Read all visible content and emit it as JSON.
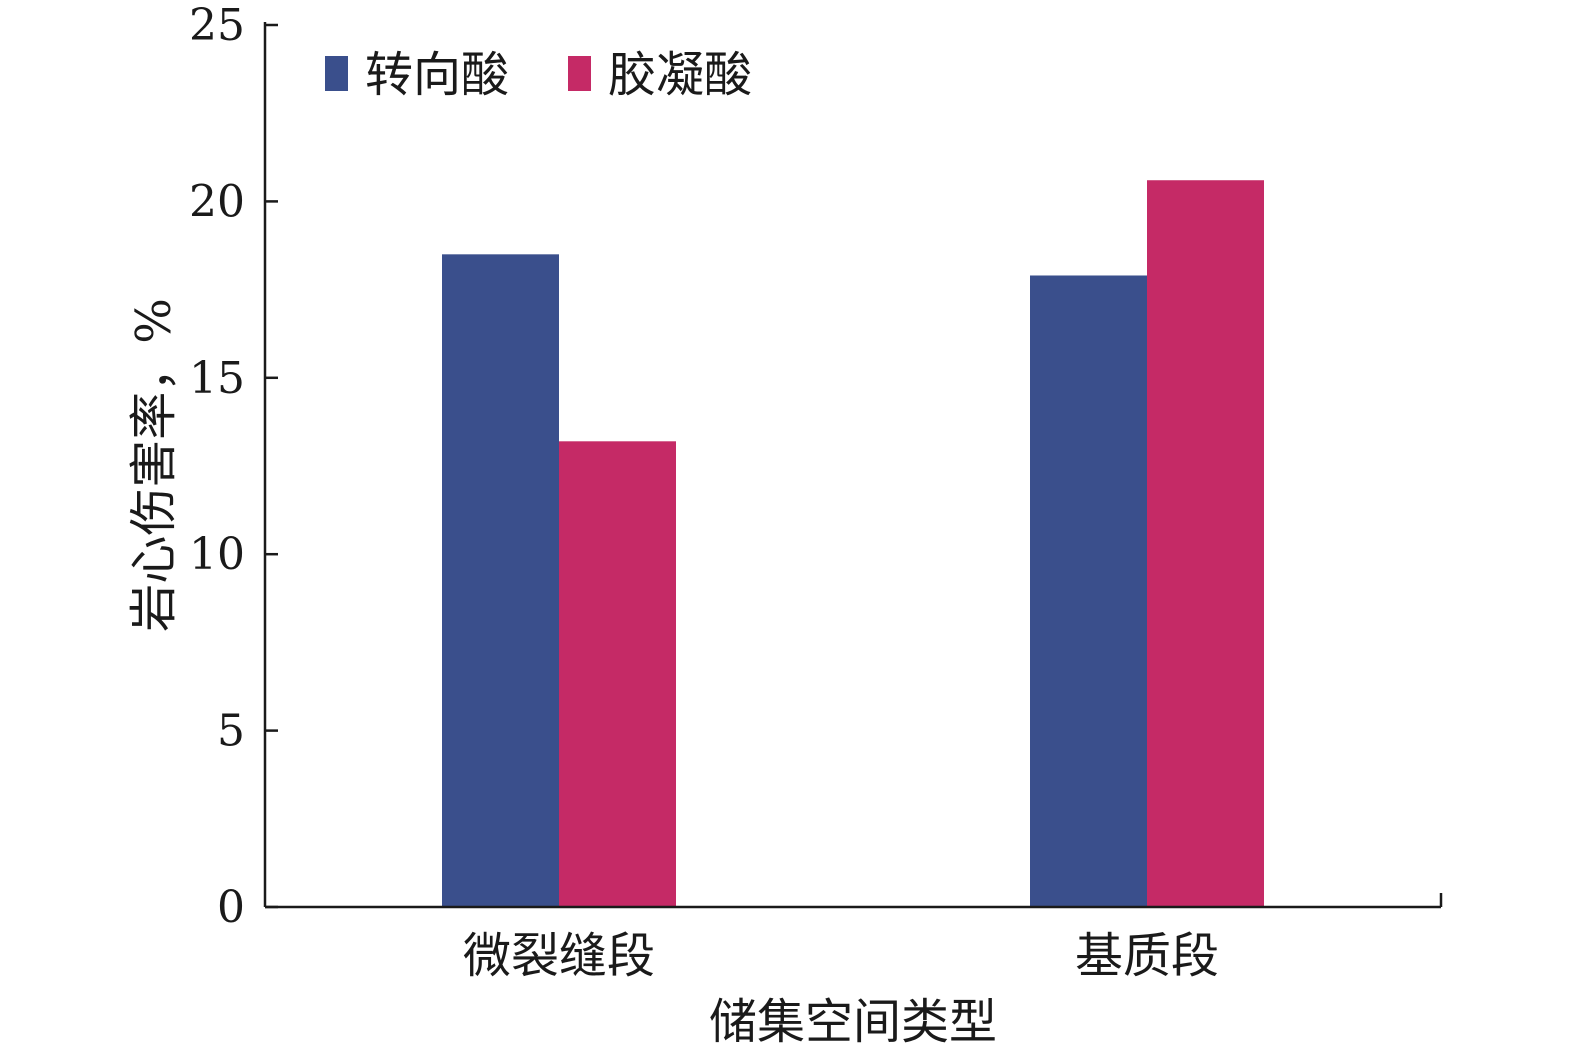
{
  "chart_data": {
    "type": "bar",
    "categories": [
      "微裂缝段",
      "基质段"
    ],
    "series": [
      {
        "name": "转向酸",
        "values": [
          18.5,
          17.9
        ],
        "color": "#3a4f8c"
      },
      {
        "name": "胶凝酸",
        "values": [
          13.2,
          20.6
        ],
        "color": "#c52a66"
      }
    ],
    "xlabel": "储集空间类型",
    "ylabel": "岩心伤害率，%",
    "ylim": [
      0,
      25
    ],
    "yticks": [
      0,
      5,
      10,
      15,
      20,
      25
    ],
    "grid": false,
    "legend": "top-left"
  }
}
